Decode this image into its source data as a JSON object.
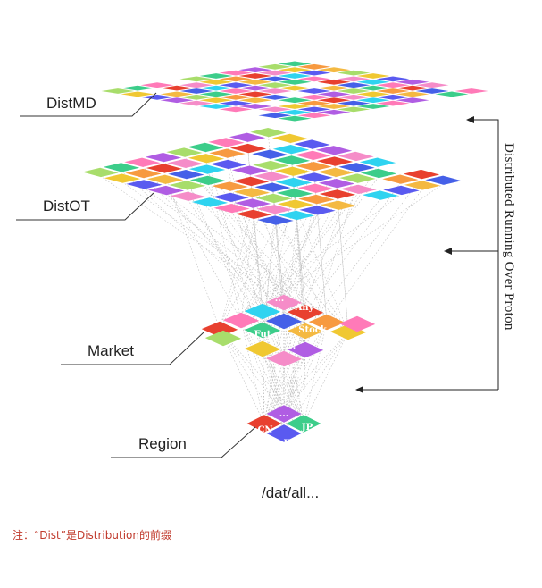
{
  "layers": {
    "distmd": "DistMD",
    "distot": "DistOT",
    "market": "Market",
    "region": "Region"
  },
  "market_tiles": [
    "...",
    "Any",
    "Fut",
    "Stock",
    "...",
    "...",
    "Opt"
  ],
  "region_tiles": [
    "...",
    "CN",
    "JP",
    "KR"
  ],
  "path_label": "/dat/all...",
  "side_label": "Distributed Running Over Proton",
  "note": "注：“Dist”是Distribution的前缀",
  "palette": [
    "#f4b942",
    "#f58cc8",
    "#3ccd8a",
    "#5a5af0",
    "#e8402f",
    "#a8dd6b",
    "#2fd3f0",
    "#f79a40",
    "#b05de3",
    "#4560e8",
    "#f0c832",
    "#ff7ab8"
  ]
}
